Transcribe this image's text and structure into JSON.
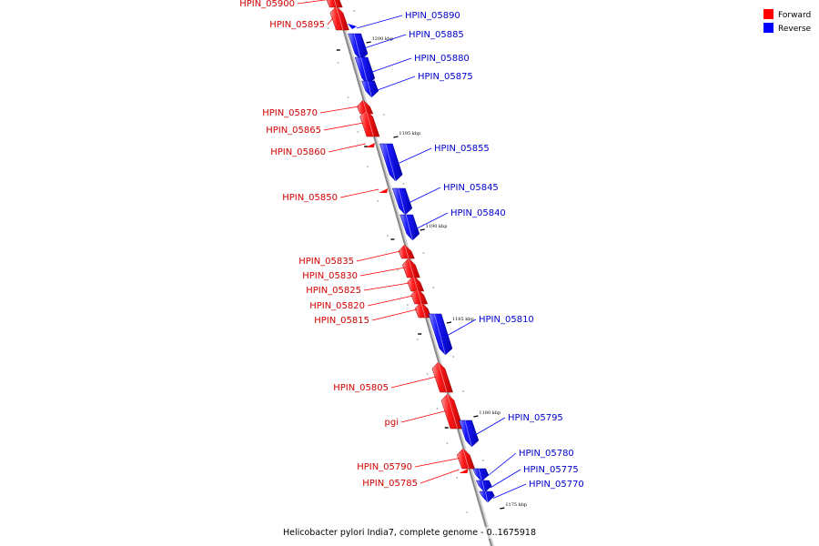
{
  "caption": "Helicobacter pylori India7, complete genome - 0..1675918",
  "legend": [
    {
      "label": "Forward",
      "color": "#ff0000"
    },
    {
      "label": "Reverse",
      "color": "#0000ff"
    }
  ],
  "colors": {
    "forward": "#ff0000",
    "reverse": "#0000ff",
    "axis": "#888888"
  },
  "ticks": [
    "1200 kbp",
    "1195 kbp",
    "1190 kbp",
    "1185 kbp",
    "1180 kbp",
    "1175 kbp"
  ],
  "forward_genes": [
    "HPIN_05900",
    "HPIN_05895",
    "HPIN_05870",
    "HPIN_05865",
    "HPIN_05860",
    "HPIN_05850",
    "HPIN_05835",
    "HPIN_05830",
    "HPIN_05825",
    "HPIN_05820",
    "HPIN_05815",
    "HPIN_05805",
    "pgi",
    "HPIN_05790",
    "HPIN_05785"
  ],
  "reverse_genes": [
    "HPIN_05890",
    "HPIN_05885",
    "HPIN_05880",
    "HPIN_05875",
    "HPIN_05855",
    "HPIN_05845",
    "HPIN_05840",
    "HPIN_05810",
    "HPIN_05795",
    "HPIN_05780",
    "HPIN_05775",
    "HPIN_05770"
  ]
}
